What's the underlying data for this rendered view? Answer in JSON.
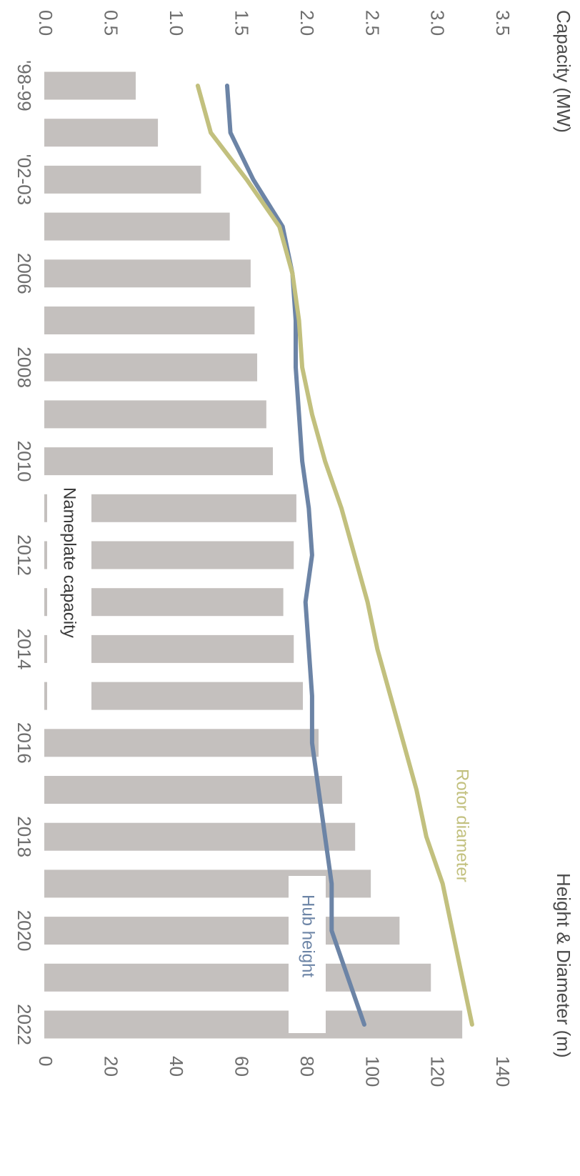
{
  "chart_data": {
    "type": "bar",
    "title": "",
    "ylabel_left": "Capacity (MW)",
    "ylabel_right": "Height & Diameter (m)",
    "categories": [
      "'98-99",
      "'00-01",
      "'02-03",
      "'04-05",
      "2006",
      "2007",
      "2008",
      "2009",
      "2010",
      "2011",
      "2012",
      "2013",
      "2014",
      "2015",
      "2016",
      "2017",
      "2018",
      "2019",
      "2020",
      "2021",
      "2022"
    ],
    "x_tick_labels": [
      "'98-99",
      "'02-03",
      "2006",
      "2008",
      "2010",
      "2012",
      "2014",
      "2016",
      "2018",
      "2020",
      "2022"
    ],
    "ylim_left": [
      0,
      3.5
    ],
    "yticks_left": [
      "0.0",
      "0.5",
      "1.0",
      "1.5",
      "2.0",
      "2.5",
      "3.0",
      "3.5"
    ],
    "ylim_right": [
      0,
      140
    ],
    "yticks_right": [
      "0",
      "20",
      "40",
      "60",
      "80",
      "100",
      "120",
      "140"
    ],
    "series": [
      {
        "name": "Nameplate capacity",
        "axis": "left",
        "kind": "bar",
        "color": "#c4c0be",
        "values": [
          0.7,
          0.87,
          1.2,
          1.42,
          1.58,
          1.61,
          1.63,
          1.7,
          1.75,
          1.93,
          1.91,
          1.83,
          1.91,
          1.98,
          2.1,
          2.28,
          2.38,
          2.5,
          2.72,
          2.96,
          3.2
        ]
      },
      {
        "name": "Hub height",
        "axis": "right",
        "kind": "line",
        "color": "#6c84a6",
        "values": [
          56,
          57,
          64,
          73,
          76,
          77,
          77,
          78,
          79,
          81,
          82,
          80,
          81,
          82,
          82,
          84,
          86,
          88,
          88,
          93,
          98
        ]
      },
      {
        "name": "Rotor diameter",
        "axis": "right",
        "kind": "line",
        "color": "#c2c07e",
        "values": [
          47,
          51,
          62,
          72,
          76,
          78,
          79,
          82,
          86,
          91,
          95,
          99,
          102,
          106,
          110,
          114,
          117,
          122,
          125,
          128,
          131
        ]
      }
    ],
    "grid": false,
    "legend": "inline labels"
  }
}
